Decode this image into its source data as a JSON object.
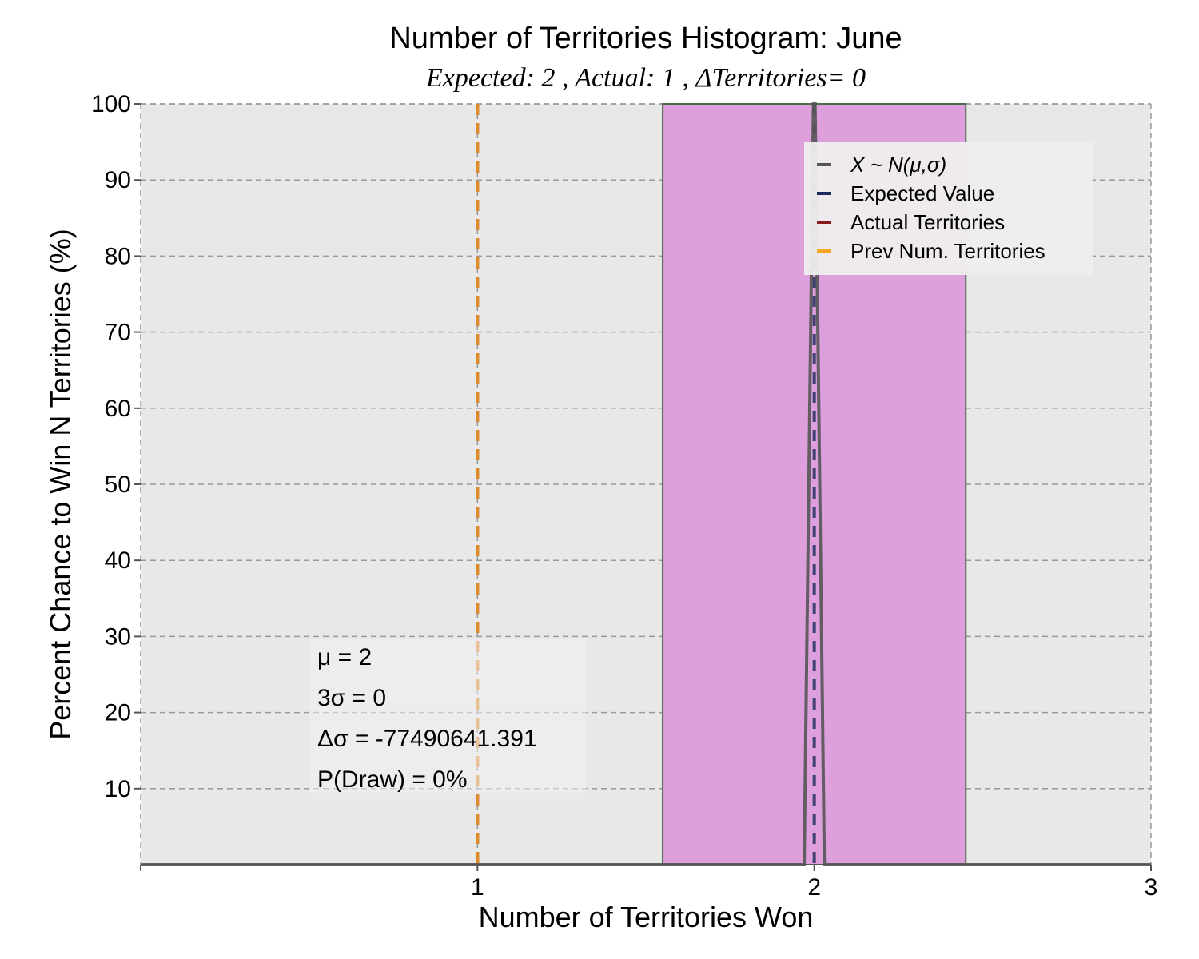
{
  "chart_data": {
    "type": "bar",
    "title": "Number of Territories Histogram: June",
    "subtitle": "Expected: 2 , Actual: 1 , ΔTerritories= 0",
    "xlabel": "Number of Territories Won",
    "ylabel": "Percent Chance to Win N Territories (%)",
    "xlim": [
      0,
      3
    ],
    "ylim": [
      0,
      100
    ],
    "x_ticks": [
      1,
      2,
      3
    ],
    "y_ticks": [
      10,
      20,
      30,
      40,
      50,
      60,
      70,
      80,
      90,
      100
    ],
    "grid": true,
    "bars": [
      {
        "x": 2,
        "value": 100,
        "width": 0.9,
        "color": "#dda0dd"
      }
    ],
    "normal_curve": {
      "mu": 2,
      "sigma": 0,
      "peak": 100,
      "color": "#555555"
    },
    "vlines": [
      {
        "name": "Expected Value",
        "x": 2,
        "color": "#1a2a5a",
        "style": "dashed"
      },
      {
        "name": "Actual Territories",
        "x": 1,
        "color": "#8b1a1a",
        "style": "dashed"
      },
      {
        "name": "Prev Num. Territories",
        "x": 1,
        "color": "#f5a623",
        "style": "dashed"
      }
    ],
    "legend": {
      "position": "top-right",
      "entries": [
        {
          "label": "X ~ N(μ,σ)",
          "color": "#555555"
        },
        {
          "label": "Expected Value",
          "color": "#1a2a5a"
        },
        {
          "label": "Actual Territories",
          "color": "#8b1a1a"
        },
        {
          "label": "Prev Num. Territories",
          "color": "#f5a623"
        }
      ]
    },
    "stats": [
      "μ = 2",
      "3σ = 0",
      "Δσ = -77490641.391",
      "P(Draw) = 0%"
    ],
    "colors": {
      "plot_background": "#e8e8e8",
      "grid": "#999999",
      "bar_edge": "#4a6a4a"
    }
  }
}
